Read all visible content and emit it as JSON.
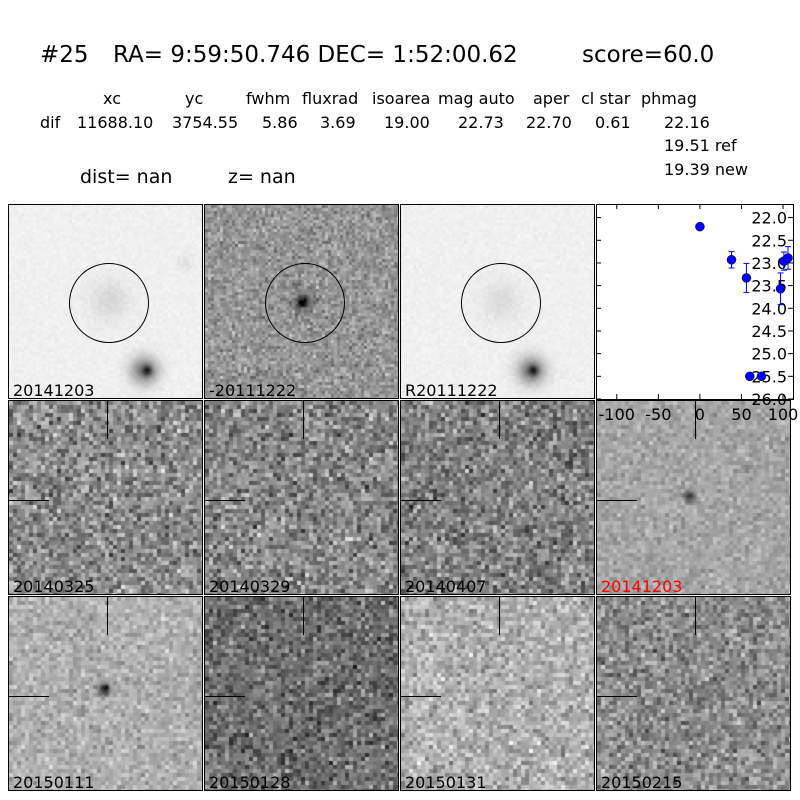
{
  "header": {
    "title_id": "#25",
    "title_coords": "RA= 9:59:50.746 DEC= 1:52:00.62",
    "title_score": "score=60.0",
    "columns": [
      "xc",
      "yc",
      "fwhm",
      "fluxrad",
      "isoarea",
      "mag auto",
      "aper",
      "cl star",
      "phmag"
    ],
    "row_label": "dif",
    "row_values": [
      "11688.10",
      "3754.55",
      "5.86",
      "3.69",
      "19.00",
      "22.73",
      "22.70",
      "0.61",
      "22.16"
    ],
    "ref_line": "19.51 ref",
    "new_line": "19.39 new",
    "dist": "dist=   nan",
    "z": "z=   nan"
  },
  "top_panels": [
    {
      "label": "20141203",
      "kind": "new"
    },
    {
      "label": "-20111222",
      "kind": "diff"
    },
    {
      "label": "R20111222",
      "kind": "ref"
    }
  ],
  "stamps": [
    {
      "label": "20140325",
      "highlight": false
    },
    {
      "label": "20140329",
      "highlight": false
    },
    {
      "label": "20140407",
      "highlight": false
    },
    {
      "label": "20141203",
      "highlight": true
    },
    {
      "label": "20150111",
      "highlight": false
    },
    {
      "label": "20150128",
      "highlight": false
    },
    {
      "label": "20150131",
      "highlight": false
    },
    {
      "label": "20150215",
      "highlight": false
    }
  ],
  "colors": {
    "points": "#0000ff",
    "highlight_label": "#ff0000"
  },
  "chart_data": {
    "type": "scatter",
    "error_bars": true,
    "xlim": [
      -125,
      112
    ],
    "ylim": [
      26.0,
      21.7
    ],
    "y_inverted": true,
    "xticks": [
      "-100",
      "-50",
      "0",
      "50",
      "100"
    ],
    "xtick_values": [
      -100,
      -50,
      0,
      50,
      100
    ],
    "yticks": [
      "22.0",
      "22.5",
      "23.0",
      "23.5",
      "24.0",
      "24.5",
      "25.0",
      "25.5",
      "26.0"
    ],
    "ytick_values": [
      22.0,
      22.5,
      23.0,
      23.5,
      24.0,
      24.5,
      25.0,
      25.5,
      26.0
    ],
    "points": [
      {
        "x": 0,
        "y": 22.2,
        "err": 0.06
      },
      {
        "x": 38,
        "y": 22.93,
        "err": 0.18
      },
      {
        "x": 56,
        "y": 23.33,
        "err": 0.32
      },
      {
        "x": 60,
        "y": 25.5,
        "err": 0.04
      },
      {
        "x": 74,
        "y": 25.5,
        "err": 0.04
      },
      {
        "x": 97,
        "y": 23.57,
        "err": 0.35
      },
      {
        "x": 101,
        "y": 22.96,
        "err": 0.2
      },
      {
        "x": 106,
        "y": 22.89,
        "err": 0.25
      }
    ]
  }
}
